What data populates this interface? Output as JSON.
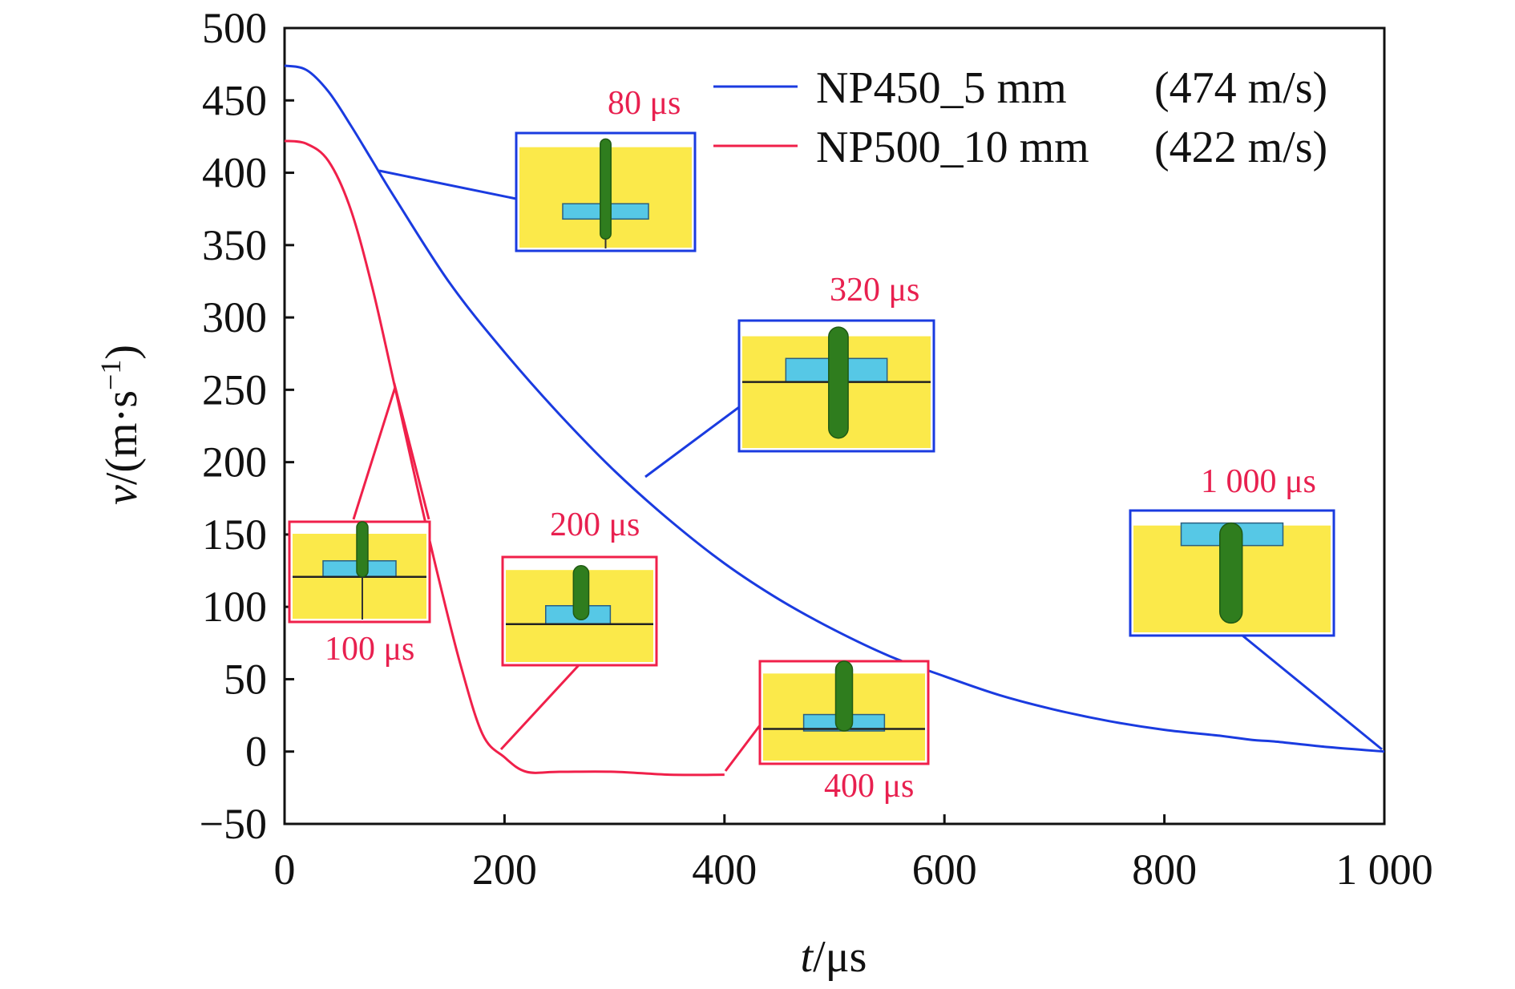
{
  "colors": {
    "series_blue": "#1a3be0",
    "series_red": "#f0204a",
    "label_red": "#e8204f",
    "inset_fill": "#fbe94a",
    "inset_plate": "#56c8e6",
    "inset_rod": "#2f7d1e",
    "inset_rod_dark": "#1f5a14",
    "axis": "#111111"
  },
  "chart_data": {
    "type": "line",
    "xlabel_italic": "t",
    "xlabel_unit": "/μs",
    "ylabel_italic": "v",
    "ylabel_unit": "/(m·s",
    "ylabel_exp": "−1",
    "ylabel_close": ")",
    "xlim": [
      0,
      1000
    ],
    "ylim": [
      -50,
      500
    ],
    "xticks": [
      0,
      200,
      400,
      600,
      800,
      1000
    ],
    "xtick_labels": [
      "0",
      "200",
      "400",
      "600",
      "800",
      "1 000"
    ],
    "yticks": [
      -50,
      0,
      50,
      100,
      150,
      200,
      250,
      300,
      350,
      400,
      450,
      500
    ],
    "ytick_labels": [
      "−50",
      "0",
      "50",
      "100",
      "150",
      "200",
      "250",
      "300",
      "350",
      "400",
      "450",
      "500"
    ],
    "grid": false,
    "legend_position": "top-right",
    "series": [
      {
        "name": "NP450_5 mm",
        "legend_note": "(474 m/s)",
        "color": "#1a3be0",
        "x": [
          0,
          20,
          40,
          60,
          80,
          100,
          150,
          200,
          250,
          300,
          350,
          400,
          450,
          500,
          550,
          600,
          650,
          700,
          750,
          800,
          850,
          880,
          900,
          950,
          1000
        ],
        "y": [
          474,
          471,
          456,
          433,
          408,
          383,
          324,
          276,
          233,
          194,
          160,
          130,
          105,
          84,
          66,
          52,
          39,
          29,
          21,
          15,
          11,
          8,
          7,
          3,
          0
        ]
      },
      {
        "name": "NP500_10 mm",
        "legend_note": "(422 m/s)",
        "color": "#f0204a",
        "x": [
          0,
          20,
          40,
          60,
          80,
          100,
          120,
          140,
          160,
          180,
          200,
          220,
          250,
          300,
          350,
          400
        ],
        "y": [
          422,
          420,
          408,
          375,
          320,
          253,
          185,
          120,
          60,
          12,
          -4,
          -14,
          -14,
          -14,
          -16,
          -16
        ]
      }
    ]
  },
  "annotations": {
    "labels": [
      {
        "key": "a80",
        "text": "80 μs",
        "time": 80
      },
      {
        "key": "a320",
        "text": "320 μs",
        "time": 320
      },
      {
        "key": "a1000",
        "text": "1 000 μs",
        "time": 1000
      },
      {
        "key": "a100",
        "text": "100 μs",
        "time": 100
      },
      {
        "key": "a200",
        "text": "200 μs",
        "time": 200
      },
      {
        "key": "a400",
        "text": "400 μs",
        "time": 400
      }
    ]
  }
}
